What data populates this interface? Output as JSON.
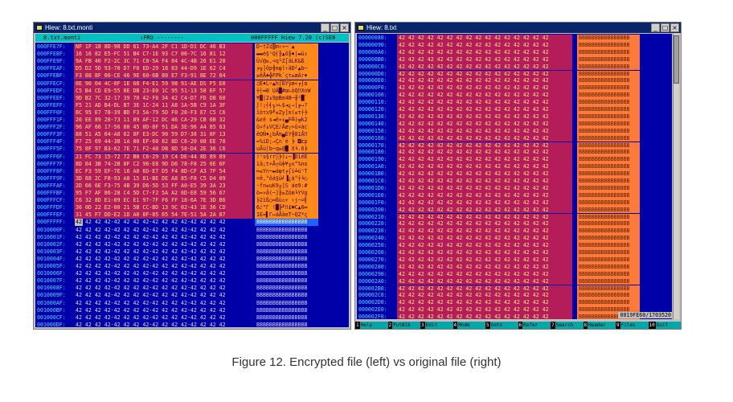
{
  "left_window": {
    "title": "Hiew: 8.txt.monti",
    "file_name": "8.txt.monti",
    "mode": "↓FRO --------",
    "position": "000FFFFF",
    "version": "Hiew 7.20 (c)SEN",
    "offsets": [
      "000FFE7F:",
      "000FFE8F:",
      "000FFE9F:",
      "000FFEAF:",
      "000FFEBF:",
      "000FFECF:",
      "000FFEDF:",
      "000FFEEF:",
      "000FFEFF:",
      "000FFF0F:",
      "000FFF1F:",
      "000FFF2F:",
      "000FFF3F:",
      "000FFF4F:",
      "000FFF5F:",
      "000FFF6F:",
      "000FFF7F:",
      "000FFF8F:",
      "000FFF9F:",
      "000FFFAF:",
      "000FFFBF:",
      "000FFFCF:",
      "000FFFDF:",
      "000FFFEF:",
      "000FFFFF:",
      "0010000F:",
      "0010001F:",
      "0010002F:",
      "0010003F:",
      "0010004F:",
      "0010005F:",
      "0010006F:",
      "0010007F:",
      "0010008F:",
      "0010009F:",
      "001000AF:",
      "001000BF:",
      "001000CF:",
      "001000DF:"
    ],
    "encrypted_hex": [
      "NF 1F 18 8D-98 DD 61 73-A4 2F C1 1D-D1 DC 46 B3",
      "16 16 82 E5-FC 51 B4 C7-1E 93 C7 06-7C 16 81 12",
      "9A FB 40 F2-2C 3C 71 C0-5A F4 84 4C-4B 26 E1 20",
      "D5 D2 5D 93-70 D7 F0 ED-29 18 83 44-D9 1E 62 C4",
      "F3 88 8F 06-CE 46 9E 60-6B 80 E7 F3-91 8E 72 04",
      "0E 90 04 4C-0F 1E 68 F4-E1 59 98 91-AE DS F5 E0",
      "C5 B4 CD E9-55 8E DB 23-E0 1C 95 51-13 58 EF 57",
      "9D B2 7C 32-17 39 70 42-F0 34 42 C4-D7 FD DB 60",
      "F5 21 AD B4-DL B7 3E 1C-24 11 A8 1A-5B C9 1A 3F",
      "8C 95 E7 78-39 BD F3 5A-79 5D F0 28-F3 E7 C5 C6",
      "26 EE 89 20-73 11 89 AF-12 DC 46 CA-29 CB 6B 32",
      "96 AF 66 17-56 80 45 0D-8F 91 DA 3E-96 A4 85 63",
      "88 51 A5 04-A8 62 8F E3-DC 90 59 D7-38 31 8F 13",
      "F7 25 69 44-3B 1A 80 EF-60 82 8D C6-20 08 EE 70",
      "75 8F 97 B3-62 7E 71 F2-40 DB 8D 58-D4 2E 36 C6",
      "21 FC 73 15-72 72 B0 C6-29 19 C4 DE-44 8D 89 89",
      "8D 84 3B 74-2B 8F C2 96-E8 9D D6 78-F8 25 6E 6F",
      "EC F3 59 EF-7E 16 A0 6D-E7 D5 F4 8D-CF A3 7F 54",
      "3D 88 2C F8-93 A0 15 81-BE DE A8 85-F8 C5 D4 09",
      "2D 66 6E F3-75 4B 39 D6-5D 53 FF A0-E5 39 3A 23",
      "95 F7 AF 86-28 C4 5D C7-F2 5A A2 6D-E8 59 56 67",
      "C6 32 8D E1-09 EC E1 97-7F F6 FF 18-6A 7E 3D B6",
      "36 0D 22 E2-00 21 5B CC-BD 13 9C 02-43 1E 36 CD",
      "31 45 F7 DD-E2 1D A0 8F-85 65 54 7E-51 5A 2A 87"
    ],
    "encrypted_text": [
      "D~†Z¢▒m↑«¬¨▲",
      "▬▬é§ⁿQ┤╟▲ô╟♠|▬ü↕",
      "Ü√@≥,<q└Z⌠äLK&ß ",
      "╒╥]ôp╫≡φ)↑âD┘▲b─",
      "≤êÅ♠╬FPk`çτ≤æÄr♦",
      "♫É♦L☼▲h⌠ßYÿæ«╒⌡α",
      "┼┤═Θ UÄ█#α∟òQ‼X∩W",
      "¥▓|2↨9pB≡4B─╫²█`",
      "⌡!¡┤╡╖>∟$◄¿→[╔→?",
      "îòτx9╜≤Zy]≡(≤τ┼╞",
      "&εë s◄ë»↕▄F╩)╦k2",
      "û»f↨VÇE♪Åæ┌>û¤àc",
      "êQÑ♦¿bÅπ▄ÉY╫81Å‼",
      "≈%iD;→Ç∩`é ╞ ◘εp",
      "uÅù│b~q≥@█ X╘.6╞",
      "!ⁿs§rr░╞)↓─▐DìëË",
      "ìä;t+Å┬û╪¥╓x°%no",
      "∞≤Y∩~▬áφτ╒⌠ì╧úⁿT",
      "=ê,°ôá§ü╛▐¿à°┼╘○",
      "-fn≤uK9╓]S áσ9:#",
      "ò≈»å(─]╟≥Zóm╘YVg",
      "╞2ìß○∞ßù⌂÷ ↑j~=╢",
      "6♪\"Γ !█╠╜‼£☻C▲6═",
      "1E≈▌Γ↔áÅàeT~QZ*ç"
    ],
    "plain_hex": "42 42 42 42-42 42 42 42-42 42 42 42-42 42 42 42",
    "plain_text": "BBBBBBBBBBBBBBBB",
    "first_plain_byte": "42"
  },
  "right_window": {
    "title": "Hiew: 8.txt",
    "offsets": [
      "00000080:",
      "00000090:",
      "000000A0:",
      "000000B0:",
      "000000C0:",
      "000000D0:",
      "000000E0:",
      "000000F0:",
      "00000100:",
      "00000110:",
      "00000120:",
      "00000130:",
      "00000140:",
      "00000150:",
      "00000160:",
      "00000170:",
      "00000180:",
      "00000190:",
      "000001A0:",
      "000001B0:",
      "000001C0:",
      "000001D0:",
      "000001E0:",
      "000001F0:",
      "00000200:",
      "00000210:",
      "00000220:",
      "00000230:",
      "00000240:",
      "00000250:",
      "00000260:",
      "00000270:",
      "00000280:",
      "00000290:",
      "000002A0:",
      "000002B0:",
      "000002C0:",
      "000002D0:",
      "000002E0:",
      "000002F0:"
    ],
    "hex": "42 42 42 42 42 42 42 42 42 42 42 42 42 42 42 42",
    "text": "BBBBBBBBBBBBBBBB",
    "status": "0019FE60/1703520",
    "fkeys": [
      {
        "n": "1",
        "l": "Help"
      },
      {
        "n": "2",
        "l": "PutBlk"
      },
      {
        "n": "3",
        "l": "Edit"
      },
      {
        "n": "4",
        "l": "Mode"
      },
      {
        "n": "5",
        "l": "Goto"
      },
      {
        "n": "6",
        "l": "Refer"
      },
      {
        "n": "7",
        "l": "Search"
      },
      {
        "n": "8",
        "l": "Header"
      },
      {
        "n": "9",
        "l": "Files"
      },
      {
        "n": "10",
        "l": "Quit"
      }
    ]
  },
  "window_buttons": {
    "minimize": "_",
    "maximize": "□",
    "close": "×"
  },
  "caption": "Figure 12. Encrypted file (left) vs original file (right)",
  "colors": {
    "pane_bg": "#0000a8",
    "hex_bg": "#b51c5a",
    "text_bg": "#ff8a1a",
    "titlebar": "#0a246a",
    "header": "#00c0c0"
  }
}
